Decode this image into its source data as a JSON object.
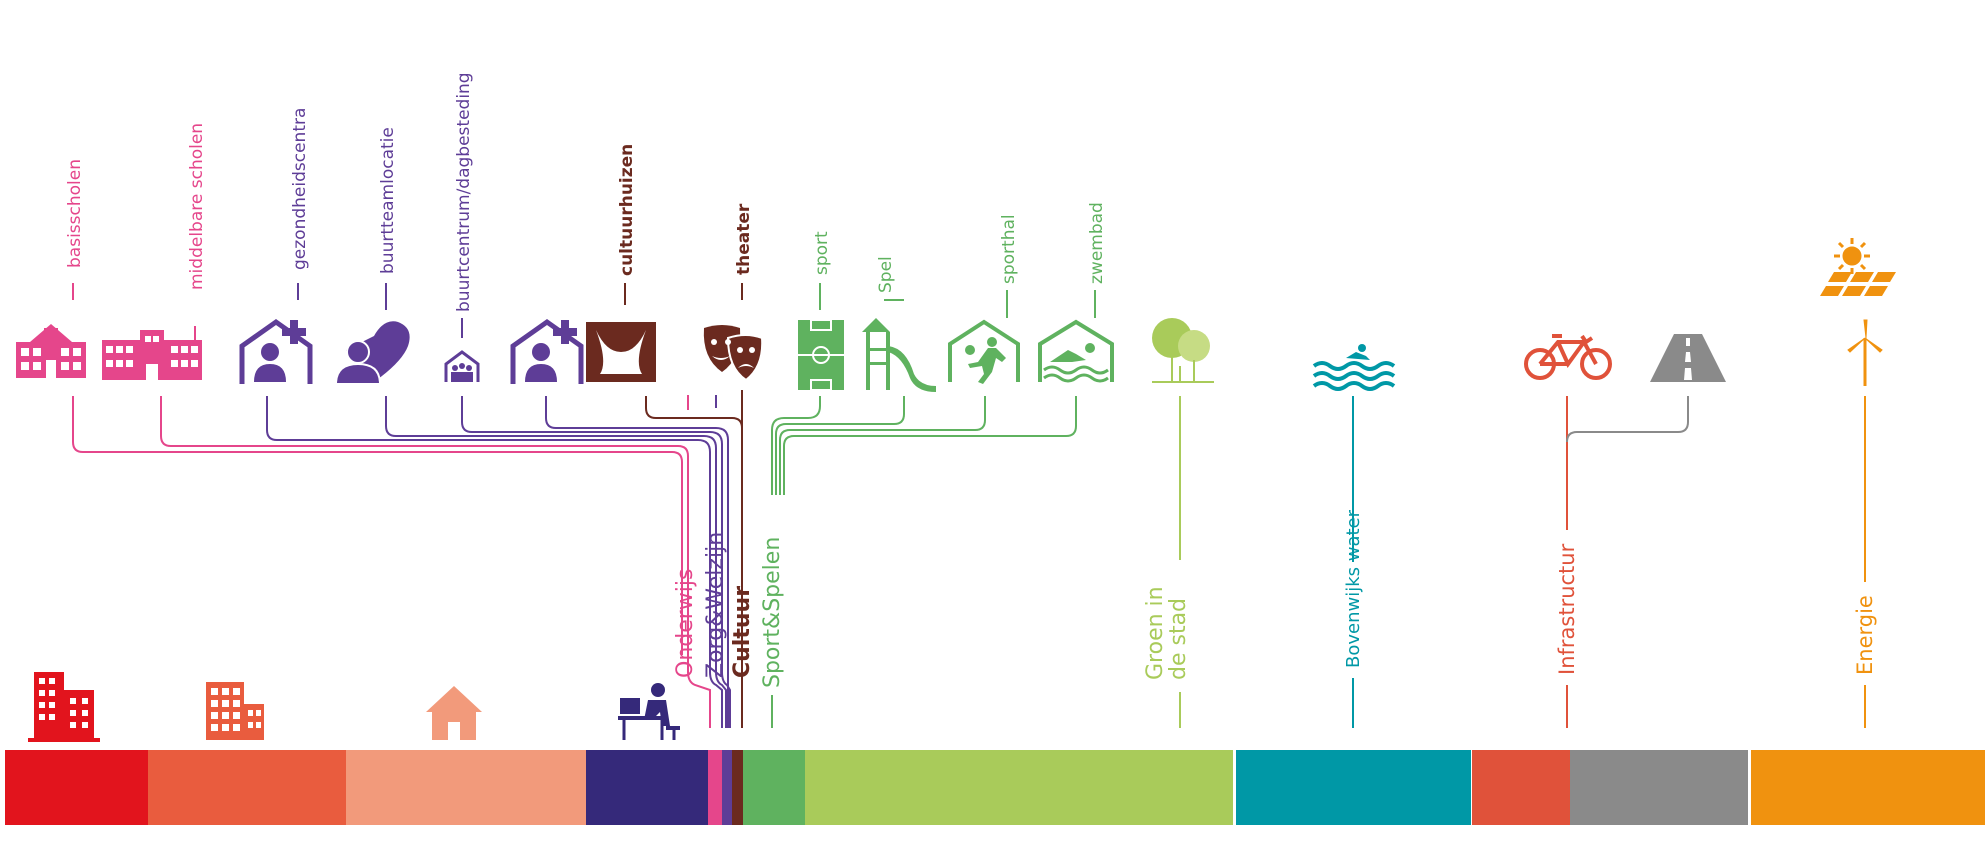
{
  "colors": {
    "pink": "#e5468b",
    "purple": "#5e3d97",
    "brown": "#6b2a1f",
    "green": "#5fb25f",
    "lightgreen": "#a9cb5a",
    "teal": "#0098a6",
    "orange_red": "#e0523a",
    "grey": "#8a8a8a",
    "orange": "#f0920f",
    "red": "#e2141d",
    "coral": "#e95c3e",
    "salmon": "#f29a7b",
    "navy": "#35297a"
  },
  "labels": {
    "basisscholen": "basisscholen",
    "middelbare_scholen": "middelbare scholen",
    "gezondheidscentra": "gezondheidscentra",
    "buurtteamlocatie": "buurtteamlocatie",
    "buurtcentrum": "buurtcentrum/dagbesteding",
    "cultuurhuizen": "cultuurhuizen",
    "theater": "theater",
    "sport": "sport",
    "spel": "Spel",
    "sporthal": "sporthal",
    "zwembad": "zwembad"
  },
  "categories": {
    "onderwijs": "Onderwijs",
    "zorg": "Zorg&Welzijn",
    "cultuur": "Cultuur",
    "sport": "Sport&Spelen",
    "groen_line1": "Groen in",
    "groen_line2": "de stad",
    "water": "Bovenwijks water",
    "infra": "Infrastructur",
    "energie": "Energie"
  },
  "icons": [
    "school-icon",
    "high-school-icon",
    "health-centre-icon",
    "heart-person-icon",
    "community-centre-icon",
    "health-centre-icon-2",
    "stage-curtain-icon",
    "theatre-masks-icon",
    "football-field-icon",
    "playground-slide-icon",
    "sports-hall-icon",
    "swimming-icon",
    "trees-icon",
    "water-waves-icon",
    "bicycle-icon",
    "road-icon",
    "sun-icon",
    "solar-panel-icon",
    "wind-turbine-icon",
    "office-building-icon",
    "apartment-building-icon",
    "house-icon",
    "office-worker-icon"
  ]
}
